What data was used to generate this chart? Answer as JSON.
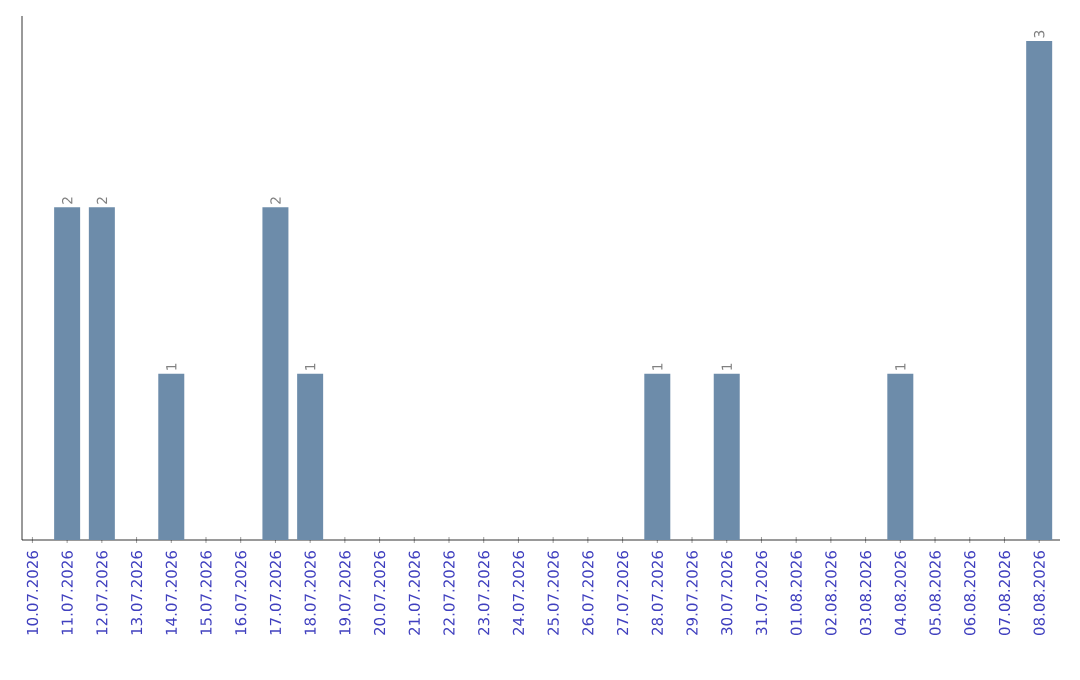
{
  "chart_data": {
    "type": "bar",
    "categories": [
      "10.07.2026",
      "11.07.2026",
      "12.07.2026",
      "13.07.2026",
      "14.07.2026",
      "15.07.2026",
      "16.07.2026",
      "17.07.2026",
      "18.07.2026",
      "19.07.2026",
      "20.07.2026",
      "21.07.2026",
      "22.07.2026",
      "23.07.2026",
      "24.07.2026",
      "25.07.2026",
      "26.07.2026",
      "27.07.2026",
      "28.07.2026",
      "29.07.2026",
      "30.07.2026",
      "31.07.2026",
      "01.08.2026",
      "02.08.2026",
      "03.08.2026",
      "04.08.2026",
      "05.08.2026",
      "06.08.2026",
      "07.08.2026",
      "08.08.2026"
    ],
    "values": [
      0,
      2,
      2,
      0,
      1,
      0,
      0,
      2,
      1,
      0,
      0,
      0,
      0,
      0,
      0,
      0,
      0,
      0,
      1,
      0,
      1,
      0,
      0,
      0,
      0,
      1,
      0,
      0,
      0,
      3
    ],
    "value_labels": [
      null,
      "2",
      "2",
      null,
      "1",
      null,
      null,
      "2",
      "1",
      null,
      null,
      null,
      null,
      null,
      null,
      null,
      null,
      null,
      "1",
      null,
      "1",
      null,
      null,
      null,
      null,
      "1",
      null,
      null,
      null,
      "3"
    ],
    "color": "#6d8caa"
  }
}
